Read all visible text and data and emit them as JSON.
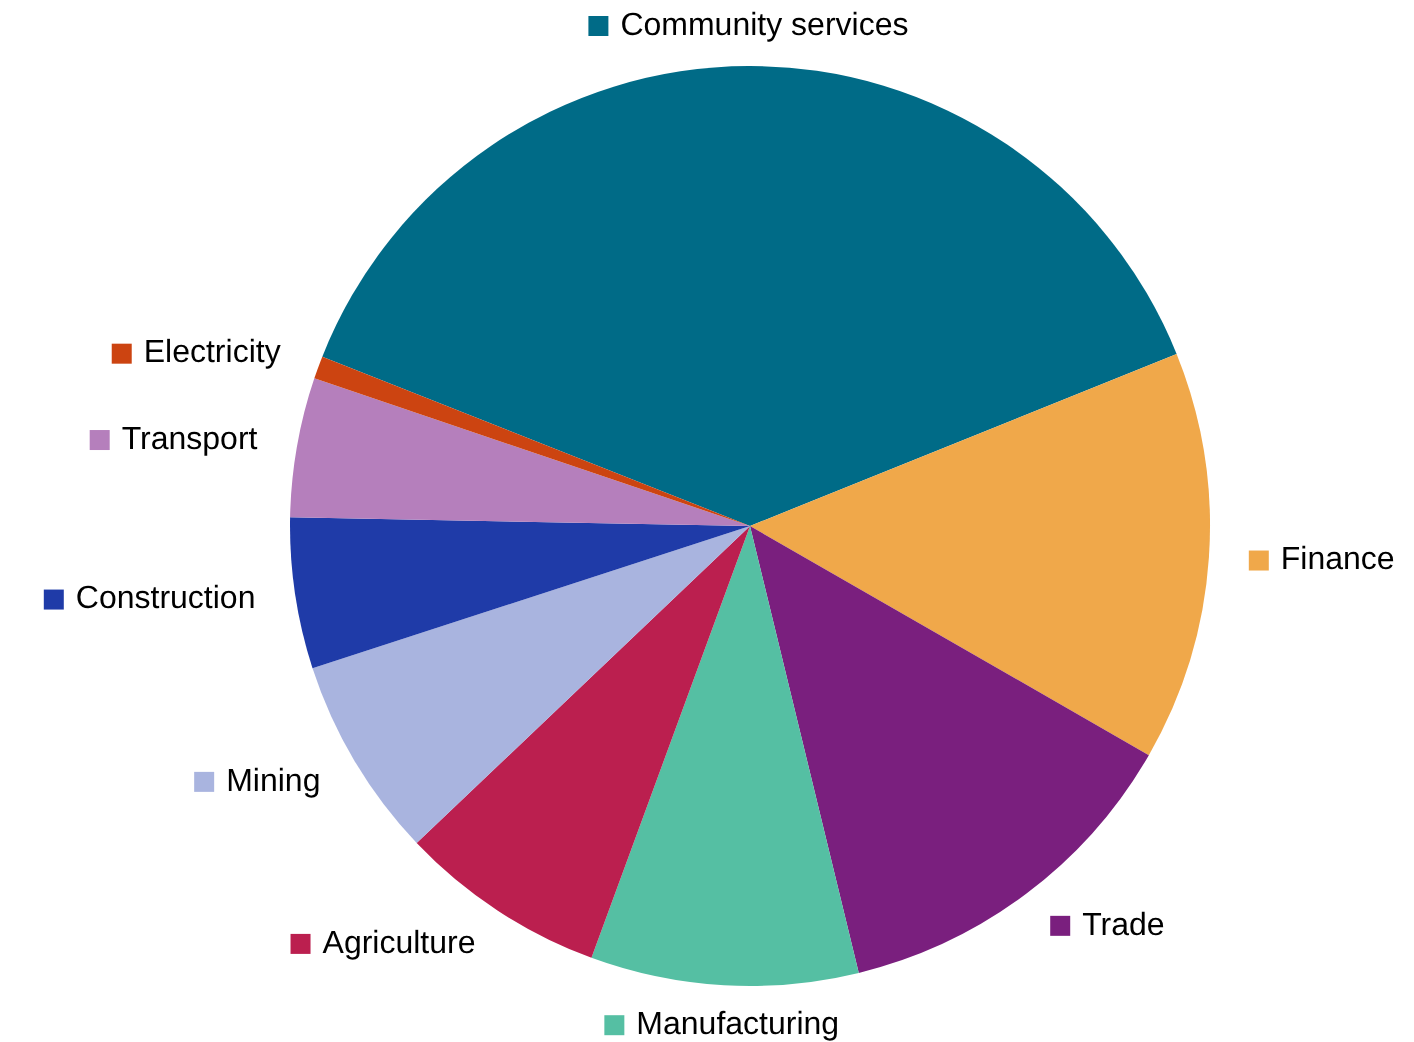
{
  "chart_data": {
    "type": "pie",
    "categories": [
      "Community services",
      "Finance",
      "Trade",
      "Manufacturing",
      "Agriculture",
      "Mining",
      "Construction",
      "Transport",
      "Electricity"
    ],
    "values": [
      37.9,
      14.4,
      12.9,
      9.4,
      7.3,
      7.1,
      5.3,
      4.9,
      0.8
    ],
    "legend": "right",
    "colors": [
      "#006b87",
      "#f0a84a",
      "#7a1f7e",
      "#55bfa3",
      "#bb1f4f",
      "#a9b4df",
      "#1f3ba8",
      "#b57fbc",
      "#cc4411"
    ]
  }
}
